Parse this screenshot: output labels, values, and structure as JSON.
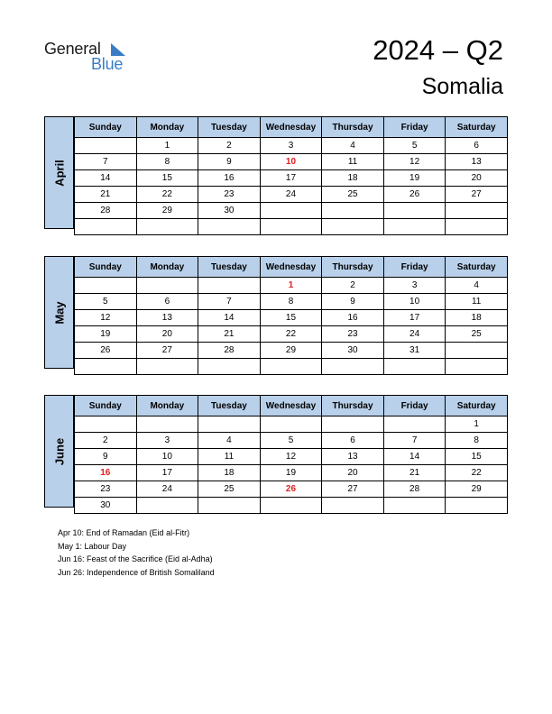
{
  "brand": {
    "line1": "General",
    "line2": "Blue",
    "accent": "#3a7dc4"
  },
  "title": "2024 – Q2",
  "country": "Somalia",
  "weekdays": [
    "Sunday",
    "Monday",
    "Tuesday",
    "Wednesday",
    "Thursday",
    "Friday",
    "Saturday"
  ],
  "months": [
    {
      "name": "April",
      "weeks": [
        [
          "",
          "1",
          "2",
          "3",
          "4",
          "5",
          "6"
        ],
        [
          "7",
          "8",
          "9",
          "10",
          "11",
          "12",
          "13"
        ],
        [
          "14",
          "15",
          "16",
          "17",
          "18",
          "19",
          "20"
        ],
        [
          "21",
          "22",
          "23",
          "24",
          "25",
          "26",
          "27"
        ],
        [
          "28",
          "29",
          "30",
          "",
          "",
          "",
          ""
        ],
        [
          "",
          "",
          "",
          "",
          "",
          "",
          ""
        ]
      ],
      "holidays": [
        "10"
      ]
    },
    {
      "name": "May",
      "weeks": [
        [
          "",
          "",
          "",
          "1",
          "2",
          "3",
          "4"
        ],
        [
          "5",
          "6",
          "7",
          "8",
          "9",
          "10",
          "11"
        ],
        [
          "12",
          "13",
          "14",
          "15",
          "16",
          "17",
          "18"
        ],
        [
          "19",
          "20",
          "21",
          "22",
          "23",
          "24",
          "25"
        ],
        [
          "26",
          "27",
          "28",
          "29",
          "30",
          "31",
          ""
        ],
        [
          "",
          "",
          "",
          "",
          "",
          "",
          ""
        ]
      ],
      "holidays": [
        "1"
      ]
    },
    {
      "name": "June",
      "weeks": [
        [
          "",
          "",
          "",
          "",
          "",
          "",
          "1"
        ],
        [
          "2",
          "3",
          "4",
          "5",
          "6",
          "7",
          "8"
        ],
        [
          "9",
          "10",
          "11",
          "12",
          "13",
          "14",
          "15"
        ],
        [
          "16",
          "17",
          "18",
          "19",
          "20",
          "21",
          "22"
        ],
        [
          "23",
          "24",
          "25",
          "26",
          "27",
          "28",
          "29"
        ],
        [
          "30",
          "",
          "",
          "",
          "",
          "",
          ""
        ]
      ],
      "holidays": [
        "16",
        "26"
      ]
    }
  ],
  "notes": [
    "Apr 10: End of Ramadan (Eid al-Fitr)",
    "May 1: Labour Day",
    "Jun 16: Feast of the Sacrifice (Eid al-Adha)",
    "Jun 26: Independence of British Somaliland"
  ]
}
